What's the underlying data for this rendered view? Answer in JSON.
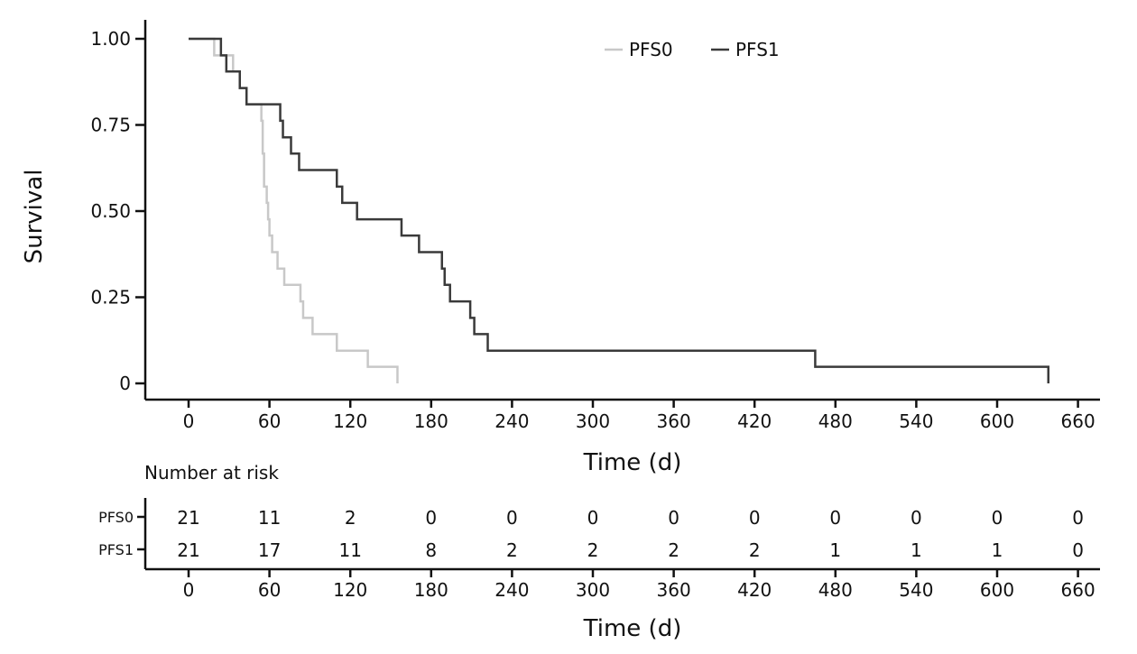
{
  "chart_data": {
    "type": "line",
    "subtype": "kaplan-meier",
    "ylabel": "Survival",
    "xlabel": "Time (d)",
    "xlim": [
      0,
      660
    ],
    "ylim": [
      0,
      1
    ],
    "x_ticks": [
      0,
      60,
      120,
      180,
      240,
      300,
      360,
      420,
      480,
      540,
      600,
      660
    ],
    "x_tick_labels": [
      "0",
      "60",
      "120",
      "180",
      "240",
      "300",
      "360",
      "420",
      "480",
      "540",
      "600",
      "660"
    ],
    "y_ticks": [
      0,
      0.25,
      0.5,
      0.75,
      1.0
    ],
    "y_tick_labels": [
      "0",
      "0.25",
      "0.50",
      "0.75",
      "1.00"
    ],
    "legend_position": "top-center",
    "series": [
      {
        "name": "PFS0",
        "color": "#c8c8c8",
        "steps": [
          [
            0,
            1.0
          ],
          [
            19,
            0.952
          ],
          [
            24,
            0.952
          ],
          [
            33,
            0.905
          ],
          [
            38,
            0.857
          ],
          [
            43,
            0.81
          ],
          [
            54,
            0.762
          ],
          [
            55,
            0.667
          ],
          [
            56,
            0.571
          ],
          [
            58,
            0.524
          ],
          [
            59,
            0.476
          ],
          [
            60,
            0.429
          ],
          [
            62,
            0.381
          ],
          [
            66,
            0.333
          ],
          [
            71,
            0.286
          ],
          [
            83,
            0.238
          ],
          [
            85,
            0.19
          ],
          [
            92,
            0.143
          ],
          [
            110,
            0.095
          ],
          [
            133,
            0.048
          ],
          [
            155,
            0.0
          ]
        ]
      },
      {
        "name": "PFS1",
        "color": "#3a3a3a",
        "steps": [
          [
            0,
            1.0
          ],
          [
            24,
            0.952
          ],
          [
            28,
            0.905
          ],
          [
            38,
            0.857
          ],
          [
            43,
            0.81
          ],
          [
            68,
            0.762
          ],
          [
            70,
            0.714
          ],
          [
            76,
            0.667
          ],
          [
            82,
            0.619
          ],
          [
            110,
            0.571
          ],
          [
            114,
            0.524
          ],
          [
            125,
            0.476
          ],
          [
            158,
            0.429
          ],
          [
            171,
            0.381
          ],
          [
            188,
            0.333
          ],
          [
            190,
            0.286
          ],
          [
            194,
            0.238
          ],
          [
            209,
            0.19
          ],
          [
            212,
            0.143
          ],
          [
            222,
            0.095
          ],
          [
            465,
            0.048
          ],
          [
            638,
            0.0
          ]
        ]
      }
    ],
    "risk_table": {
      "title": "Number at risk",
      "xlabel": "Time (d)",
      "times": [
        "0",
        "60",
        "120",
        "180",
        "240",
        "300",
        "360",
        "420",
        "480",
        "540",
        "600",
        "660"
      ],
      "rows": [
        {
          "label": "PFS0",
          "values": [
            "21",
            "11",
            "2",
            "0",
            "0",
            "0",
            "0",
            "0",
            "0",
            "0",
            "0",
            "0"
          ]
        },
        {
          "label": "PFS1",
          "values": [
            "21",
            "17",
            "11",
            "8",
            "2",
            "2",
            "2",
            "2",
            "1",
            "1",
            "1",
            "0"
          ]
        }
      ]
    }
  }
}
